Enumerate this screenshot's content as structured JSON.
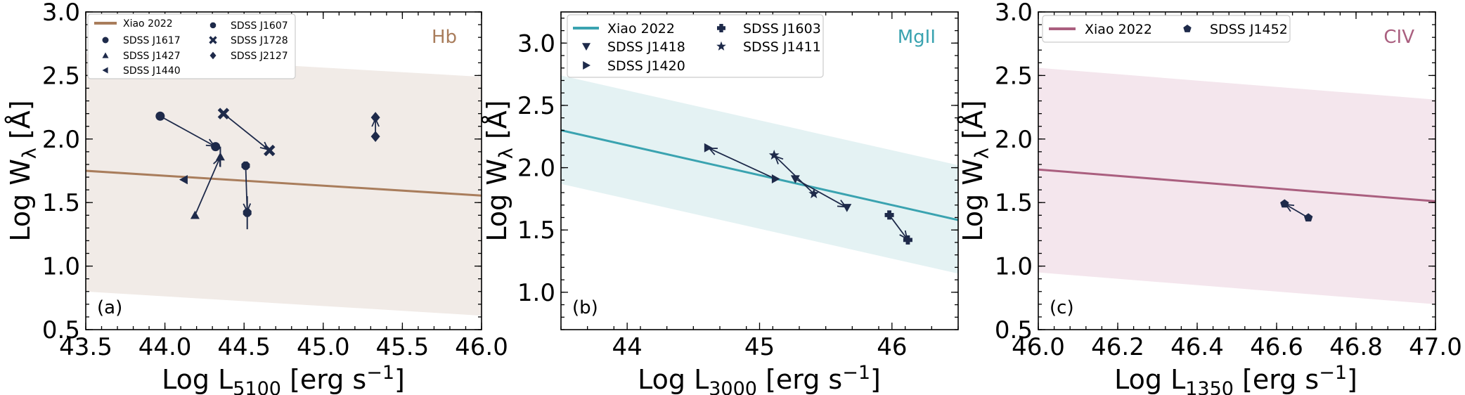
{
  "colors": {
    "hb": "#a97d5c",
    "mg": "#3aa3b0",
    "civ": "#aa5f7f",
    "hb_band": "#f1ebe7",
    "mg_band": "#e4f2f3",
    "civ_band": "#f4e6ed",
    "markers": "#1e2a4a"
  },
  "chart_data": [
    {
      "type": "scatter",
      "panel_label": "(a)",
      "line_label": "Hb",
      "xlabel": "Log L5100 [erg s−1]",
      "xlabel_parts": {
        "main": "Log L",
        "sub": "5100",
        "unit": "[erg s",
        "sup": "−1",
        "close": "]"
      },
      "ylabel": "Log Wλ [Å]",
      "ylabel_parts": {
        "main": "Log W",
        "sub": "λ",
        "unit": "[Å]"
      },
      "xlim": [
        43.5,
        46.0
      ],
      "ylim": [
        0.5,
        3.0
      ],
      "xticks": [
        43.5,
        44.0,
        44.5,
        45.0,
        45.5,
        46.0
      ],
      "xtick_labels": [
        "43.5",
        "44.0",
        "44.5",
        "45.0",
        "45.5",
        "46.0"
      ],
      "yticks": [
        0.5,
        1.0,
        1.5,
        2.0,
        2.5,
        3.0
      ],
      "ytick_labels": [
        "0.5",
        "1.0",
        "1.5",
        "2.0",
        "2.5",
        "3.0"
      ],
      "relation": {
        "name": "Xiao 2022",
        "x": [
          43.5,
          46.0
        ],
        "y": [
          1.75,
          1.555
        ]
      },
      "band": {
        "x": [
          43.5,
          46.0
        ],
        "upper": [
          2.67,
          2.49
        ],
        "lower": [
          0.8,
          0.61
        ]
      },
      "legend_columns": 2,
      "objects": [
        {
          "name": "SDSS J1617",
          "marker": "circle",
          "from": [
            43.97,
            2.18
          ],
          "to": [
            44.32,
            1.94
          ]
        },
        {
          "name": "SDSS J1427",
          "marker": "triangle-up",
          "from": [
            44.19,
            1.4
          ],
          "to": [
            44.35,
            1.86
          ],
          "err": 0.08
        },
        {
          "name": "SDSS J1440",
          "marker": "triangle-left",
          "from": [
            44.12,
            1.68
          ],
          "to": [
            44.12,
            1.68
          ]
        },
        {
          "name": "SDSS J1607",
          "marker": "octagon",
          "from": [
            44.51,
            1.79
          ],
          "to": [
            44.52,
            1.42
          ],
          "err": 0.13
        },
        {
          "name": "SDSS J1728",
          "marker": "x",
          "from": [
            44.37,
            2.2
          ],
          "to": [
            44.66,
            1.91
          ]
        },
        {
          "name": "SDSS J2127",
          "marker": "diamond",
          "from": [
            45.33,
            2.02
          ],
          "to": [
            45.33,
            2.17
          ]
        }
      ]
    },
    {
      "type": "scatter",
      "panel_label": "(b)",
      "line_label": "MgII",
      "xlabel": "Log L3000 [erg s−1]",
      "xlabel_parts": {
        "main": "Log L",
        "sub": "3000",
        "unit": "[erg s",
        "sup": "−1",
        "close": "]"
      },
      "ylabel": "Log Wλ [Å]",
      "ylabel_parts": {
        "main": "Log W",
        "sub": "λ",
        "unit": "[Å]"
      },
      "xlim": [
        43.5,
        46.5
      ],
      "ylim": [
        0.7,
        3.25
      ],
      "xticks": [
        44,
        45,
        46
      ],
      "xtick_labels": [
        "44",
        "45",
        "46"
      ],
      "yticks": [
        1.0,
        1.5,
        2.0,
        2.5,
        3.0
      ],
      "ytick_labels": [
        "1.0",
        "1.5",
        "2.0",
        "2.5",
        "3.0"
      ],
      "relation": {
        "name": "Xiao 2022",
        "x": [
          43.5,
          46.5
        ],
        "y": [
          2.3,
          1.58
        ]
      },
      "band": {
        "x": [
          43.5,
          46.5
        ],
        "upper": [
          2.74,
          2.02
        ],
        "lower": [
          1.87,
          1.15
        ]
      },
      "legend_columns": 2,
      "objects": [
        {
          "name": "SDSS J1418",
          "marker": "triangle-down",
          "from": [
            45.27,
            1.91
          ],
          "to": [
            45.66,
            1.68
          ]
        },
        {
          "name": "SDSS J1420",
          "marker": "triangle-right",
          "from": [
            45.12,
            1.91
          ],
          "to": [
            44.61,
            2.16
          ]
        },
        {
          "name": "SDSS J1603",
          "marker": "plus",
          "from": [
            45.98,
            1.62
          ],
          "to": [
            46.12,
            1.42
          ]
        },
        {
          "name": "SDSS J1411",
          "marker": "star",
          "from": [
            45.41,
            1.79
          ],
          "to": [
            45.11,
            2.1
          ]
        }
      ]
    },
    {
      "type": "scatter",
      "panel_label": "(c)",
      "line_label": "CIV",
      "xlabel": "Log L1350 [erg s−1]",
      "xlabel_parts": {
        "main": "Log L",
        "sub": "1350",
        "unit": "[erg s",
        "sup": "−1",
        "close": "]"
      },
      "ylabel": "Log Wλ [Å]",
      "ylabel_parts": {
        "main": "Log W",
        "sub": "λ",
        "unit": "[Å]"
      },
      "xlim": [
        46.0,
        47.0
      ],
      "ylim": [
        0.5,
        3.0
      ],
      "xticks": [
        46.0,
        46.2,
        46.4,
        46.6,
        46.8,
        47.0
      ],
      "xtick_labels": [
        "46.0",
        "46.2",
        "46.4",
        "46.6",
        "46.8",
        "47.0"
      ],
      "yticks": [
        0.5,
        1.0,
        1.5,
        2.0,
        2.5,
        3.0
      ],
      "ytick_labels": [
        "0.5",
        "1.0",
        "1.5",
        "2.0",
        "2.5",
        "3.0"
      ],
      "relation": {
        "name": "Xiao 2022",
        "x": [
          46.0,
          47.0
        ],
        "y": [
          1.76,
          1.51
        ]
      },
      "band": {
        "x": [
          46.0,
          47.0
        ],
        "upper": [
          2.56,
          2.31
        ],
        "lower": [
          0.95,
          0.7
        ]
      },
      "legend_columns": 2,
      "objects": [
        {
          "name": "SDSS J1452",
          "marker": "pentagon",
          "from": [
            46.68,
            1.38
          ],
          "to": [
            46.62,
            1.49
          ]
        }
      ]
    }
  ]
}
